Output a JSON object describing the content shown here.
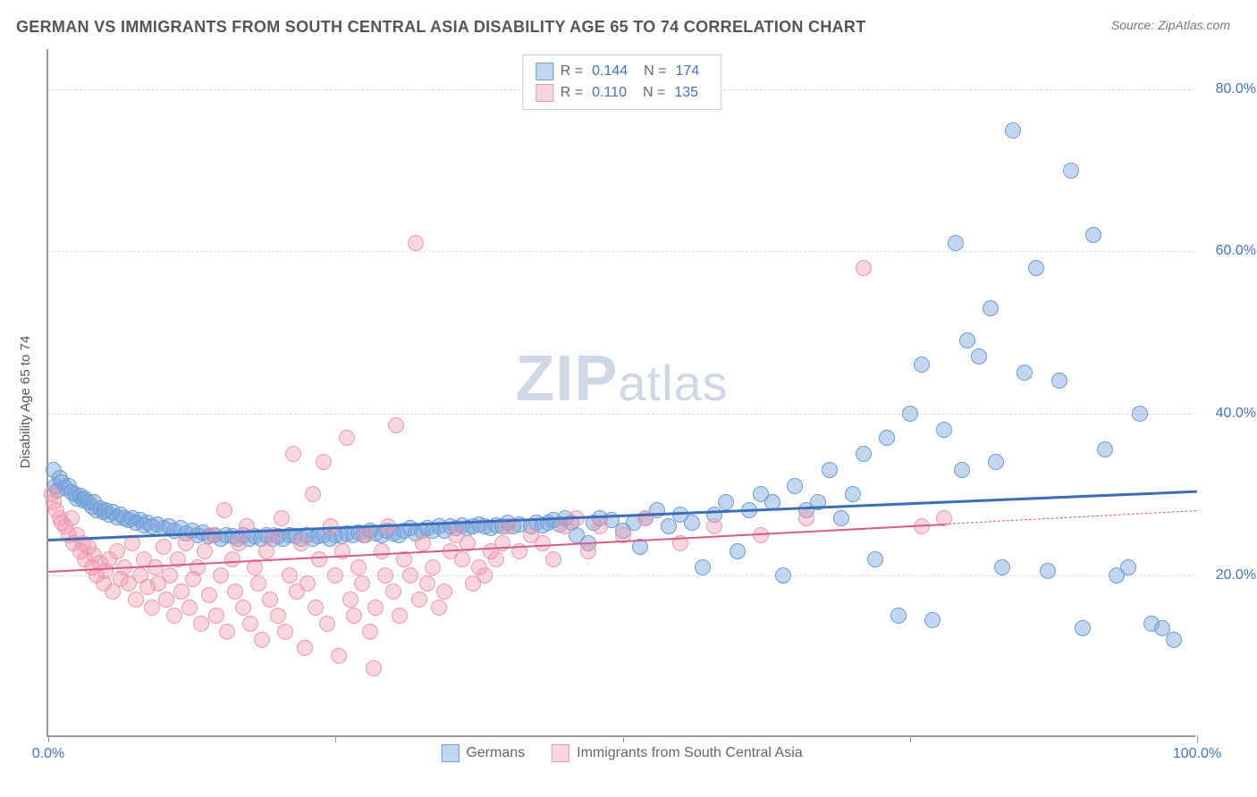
{
  "title": "GERMAN VS IMMIGRANTS FROM SOUTH CENTRAL ASIA DISABILITY AGE 65 TO 74 CORRELATION CHART",
  "source": "Source: ZipAtlas.com",
  "watermark_main": "ZIP",
  "watermark_sub": "atlas",
  "ylabel": "Disability Age 65 to 74",
  "chart": {
    "type": "scatter",
    "xlim": [
      0,
      100
    ],
    "ylim": [
      0,
      85
    ],
    "xtick_positions": [
      0,
      25,
      50,
      75,
      100
    ],
    "xtick_labels": {
      "0": "0.0%",
      "100": "100.0%"
    },
    "ytick_positions": [
      20,
      40,
      60,
      80
    ],
    "ytick_labels": [
      "20.0%",
      "40.0%",
      "60.0%",
      "80.0%"
    ],
    "gridline_y": [
      20,
      40,
      60,
      80
    ],
    "background_color": "#ffffff",
    "grid_color": "#dddddd",
    "axis_color": "#999999",
    "tick_label_color": "#4472c4",
    "series": [
      {
        "name": "Germans",
        "label": "Germans",
        "color_fill": "rgba(122,164,220,0.45)",
        "color_stroke": "#6b9dd6",
        "marker_size": 18,
        "R": "0.144",
        "N": "174",
        "trend": {
          "x1": 0,
          "y1": 24.5,
          "x2": 100,
          "y2": 30.5,
          "color": "#3b6db8",
          "width": 2.5,
          "dash_from_x": null
        },
        "points": [
          [
            0.5,
            33
          ],
          [
            0.6,
            31
          ],
          [
            0.8,
            30.5
          ],
          [
            1,
            32
          ],
          [
            1.2,
            31.5
          ],
          [
            1.5,
            30.8
          ],
          [
            1.8,
            31
          ],
          [
            2,
            30.2
          ],
          [
            2.3,
            30
          ],
          [
            2.5,
            29.5
          ],
          [
            2.8,
            29.8
          ],
          [
            3,
            29.2
          ],
          [
            3.2,
            29.5
          ],
          [
            3.5,
            29
          ],
          [
            3.8,
            28.5
          ],
          [
            4,
            29
          ],
          [
            4.2,
            28
          ],
          [
            4.5,
            28.3
          ],
          [
            4.8,
            27.8
          ],
          [
            5,
            28
          ],
          [
            5.3,
            27.5
          ],
          [
            5.6,
            27.8
          ],
          [
            6,
            27.2
          ],
          [
            6.3,
            27.5
          ],
          [
            6.6,
            27
          ],
          [
            7,
            26.8
          ],
          [
            7.3,
            27
          ],
          [
            7.6,
            26.5
          ],
          [
            8,
            26.8
          ],
          [
            8.3,
            26.2
          ],
          [
            8.6,
            26.5
          ],
          [
            9,
            26
          ],
          [
            9.5,
            26.3
          ],
          [
            10,
            25.8
          ],
          [
            10.5,
            26
          ],
          [
            11,
            25.5
          ],
          [
            11.5,
            25.8
          ],
          [
            12,
            25.2
          ],
          [
            12.5,
            25.5
          ],
          [
            13,
            25
          ],
          [
            13.5,
            25.3
          ],
          [
            14,
            24.8
          ],
          [
            14.5,
            25
          ],
          [
            15,
            24.5
          ],
          [
            15.5,
            25
          ],
          [
            16,
            24.8
          ],
          [
            16.5,
            24.5
          ],
          [
            17,
            25
          ],
          [
            17.5,
            24.5
          ],
          [
            18,
            24.8
          ],
          [
            18.5,
            24.5
          ],
          [
            19,
            25
          ],
          [
            19.5,
            24.5
          ],
          [
            20,
            24.8
          ],
          [
            20.5,
            24.5
          ],
          [
            21,
            25
          ],
          [
            21.5,
            24.8
          ],
          [
            22,
            24.5
          ],
          [
            22.5,
            25
          ],
          [
            23,
            24.5
          ],
          [
            23.5,
            24.8
          ],
          [
            24,
            25
          ],
          [
            24.5,
            24.5
          ],
          [
            25,
            25
          ],
          [
            25.5,
            24.8
          ],
          [
            26,
            25.2
          ],
          [
            26.5,
            25
          ],
          [
            27,
            25.3
          ],
          [
            27.5,
            25
          ],
          [
            28,
            25.5
          ],
          [
            28.5,
            25.2
          ],
          [
            29,
            25
          ],
          [
            29.5,
            25.5
          ],
          [
            30,
            25.2
          ],
          [
            30.5,
            25
          ],
          [
            31,
            25.5
          ],
          [
            31.5,
            25.8
          ],
          [
            32,
            25.2
          ],
          [
            32.5,
            25.5
          ],
          [
            33,
            25.8
          ],
          [
            33.5,
            25.5
          ],
          [
            34,
            26
          ],
          [
            34.5,
            25.5
          ],
          [
            35,
            26
          ],
          [
            35.5,
            25.8
          ],
          [
            36,
            26.2
          ],
          [
            36.5,
            25.8
          ],
          [
            37,
            26
          ],
          [
            37.5,
            26.3
          ],
          [
            38,
            26
          ],
          [
            38.5,
            25.8
          ],
          [
            39,
            26.2
          ],
          [
            39.5,
            26
          ],
          [
            40,
            26.5
          ],
          [
            40.5,
            26
          ],
          [
            41,
            26.3
          ],
          [
            42,
            26
          ],
          [
            42.5,
            26.5
          ],
          [
            43,
            26.2
          ],
          [
            43.5,
            26.5
          ],
          [
            44,
            26.8
          ],
          [
            44.5,
            26.3
          ],
          [
            45,
            27
          ],
          [
            45.5,
            26.5
          ],
          [
            46,
            25
          ],
          [
            47,
            24
          ],
          [
            47.5,
            26.5
          ],
          [
            48,
            27
          ],
          [
            49,
            26.8
          ],
          [
            50,
            25.5
          ],
          [
            51,
            26.5
          ],
          [
            51.5,
            23.5
          ],
          [
            52,
            27
          ],
          [
            53,
            28
          ],
          [
            54,
            26
          ],
          [
            55,
            27.5
          ],
          [
            56,
            26.5
          ],
          [
            57,
            21
          ],
          [
            58,
            27.5
          ],
          [
            59,
            29
          ],
          [
            60,
            23
          ],
          [
            61,
            28
          ],
          [
            62,
            30
          ],
          [
            63,
            29
          ],
          [
            64,
            20
          ],
          [
            65,
            31
          ],
          [
            66,
            28
          ],
          [
            67,
            29
          ],
          [
            68,
            33
          ],
          [
            69,
            27
          ],
          [
            70,
            30
          ],
          [
            71,
            35
          ],
          [
            72,
            22
          ],
          [
            73,
            37
          ],
          [
            74,
            15
          ],
          [
            75,
            40
          ],
          [
            76,
            46
          ],
          [
            77,
            14.5
          ],
          [
            78,
            38
          ],
          [
            79,
            61
          ],
          [
            79.5,
            33
          ],
          [
            80,
            49
          ],
          [
            81,
            47
          ],
          [
            82,
            53
          ],
          [
            82.5,
            34
          ],
          [
            83,
            21
          ],
          [
            84,
            75
          ],
          [
            85,
            45
          ],
          [
            86,
            58
          ],
          [
            87,
            20.5
          ],
          [
            88,
            44
          ],
          [
            89,
            70
          ],
          [
            90,
            13.5
          ],
          [
            91,
            62
          ],
          [
            92,
            35.5
          ],
          [
            93,
            20
          ],
          [
            94,
            21
          ],
          [
            95,
            40
          ],
          [
            96,
            14
          ],
          [
            97,
            13.5
          ],
          [
            98,
            12
          ]
        ]
      },
      {
        "name": "Immigrants from South Central Asia",
        "label": "Immigrants from South Central Asia",
        "color_fill": "rgba(240,150,170,0.4)",
        "color_stroke": "#e89ab0",
        "marker_size": 18,
        "R": "0.110",
        "N": "135",
        "trend": {
          "x1": 0,
          "y1": 20.5,
          "x2": 100,
          "y2": 28,
          "color": "#d65a8a",
          "width": 2,
          "dash_from_x": 78
        },
        "points": [
          [
            0.3,
            30
          ],
          [
            0.5,
            29
          ],
          [
            0.7,
            28
          ],
          [
            1,
            27
          ],
          [
            1.2,
            26.5
          ],
          [
            1.5,
            26
          ],
          [
            1.8,
            25
          ],
          [
            2,
            27
          ],
          [
            2.2,
            24
          ],
          [
            2.5,
            25
          ],
          [
            2.8,
            23
          ],
          [
            3,
            24
          ],
          [
            3.2,
            22
          ],
          [
            3.5,
            23.5
          ],
          [
            3.8,
            21
          ],
          [
            4,
            22.5
          ],
          [
            4.2,
            20
          ],
          [
            4.5,
            21.5
          ],
          [
            4.8,
            19
          ],
          [
            5,
            20.5
          ],
          [
            5.3,
            22
          ],
          [
            5.6,
            18
          ],
          [
            6,
            23
          ],
          [
            6.3,
            19.5
          ],
          [
            6.6,
            21
          ],
          [
            7,
            19
          ],
          [
            7.3,
            24
          ],
          [
            7.6,
            17
          ],
          [
            8,
            20
          ],
          [
            8.3,
            22
          ],
          [
            8.6,
            18.5
          ],
          [
            9,
            16
          ],
          [
            9.3,
            21
          ],
          [
            9.6,
            19
          ],
          [
            10,
            23.5
          ],
          [
            10.3,
            17
          ],
          [
            10.6,
            20
          ],
          [
            11,
            15
          ],
          [
            11.3,
            22
          ],
          [
            11.6,
            18
          ],
          [
            12,
            24
          ],
          [
            12.3,
            16
          ],
          [
            12.6,
            19.5
          ],
          [
            13,
            21
          ],
          [
            13.3,
            14
          ],
          [
            13.6,
            23
          ],
          [
            14,
            17.5
          ],
          [
            14.3,
            25
          ],
          [
            14.6,
            15
          ],
          [
            15,
            20
          ],
          [
            15.3,
            28
          ],
          [
            15.6,
            13
          ],
          [
            16,
            22
          ],
          [
            16.3,
            18
          ],
          [
            16.6,
            24
          ],
          [
            17,
            16
          ],
          [
            17.3,
            26
          ],
          [
            17.6,
            14
          ],
          [
            18,
            21
          ],
          [
            18.3,
            19
          ],
          [
            18.6,
            12
          ],
          [
            19,
            23
          ],
          [
            19.3,
            17
          ],
          [
            19.6,
            25
          ],
          [
            20,
            15
          ],
          [
            20.3,
            27
          ],
          [
            20.6,
            13
          ],
          [
            21,
            20
          ],
          [
            21.3,
            35
          ],
          [
            21.6,
            18
          ],
          [
            22,
            24
          ],
          [
            22.3,
            11
          ],
          [
            22.6,
            19
          ],
          [
            23,
            30
          ],
          [
            23.3,
            16
          ],
          [
            23.6,
            22
          ],
          [
            24,
            34
          ],
          [
            24.3,
            14
          ],
          [
            24.6,
            26
          ],
          [
            25,
            20
          ],
          [
            25.3,
            10
          ],
          [
            25.6,
            23
          ],
          [
            26,
            37
          ],
          [
            26.3,
            17
          ],
          [
            26.6,
            15
          ],
          [
            27,
            21
          ],
          [
            27.3,
            19
          ],
          [
            27.6,
            25
          ],
          [
            28,
            13
          ],
          [
            28.3,
            8.5
          ],
          [
            28.5,
            16
          ],
          [
            29,
            23
          ],
          [
            29.3,
            20
          ],
          [
            29.6,
            26
          ],
          [
            30,
            18
          ],
          [
            30.3,
            38.5
          ],
          [
            30.6,
            15
          ],
          [
            31,
            22
          ],
          [
            31.5,
            20
          ],
          [
            32,
            61
          ],
          [
            32.3,
            17
          ],
          [
            32.6,
            24
          ],
          [
            33,
            19
          ],
          [
            33.5,
            21
          ],
          [
            34,
            16
          ],
          [
            34.5,
            18
          ],
          [
            35,
            23
          ],
          [
            35.5,
            25
          ],
          [
            36,
            22
          ],
          [
            36.5,
            24
          ],
          [
            37,
            19
          ],
          [
            37.5,
            21
          ],
          [
            38,
            20
          ],
          [
            38.5,
            23
          ],
          [
            39,
            22
          ],
          [
            39.5,
            24
          ],
          [
            40,
            26
          ],
          [
            41,
            23
          ],
          [
            42,
            25
          ],
          [
            43,
            24
          ],
          [
            44,
            22
          ],
          [
            45,
            26
          ],
          [
            46,
            27
          ],
          [
            47,
            23
          ],
          [
            48,
            26
          ],
          [
            50,
            25
          ],
          [
            52,
            27
          ],
          [
            55,
            24
          ],
          [
            58,
            26
          ],
          [
            62,
            25
          ],
          [
            66,
            27
          ],
          [
            71,
            58
          ],
          [
            76,
            26
          ],
          [
            78,
            27
          ]
        ]
      }
    ]
  },
  "legend_top": {
    "rows": [
      {
        "swatch_fill": "rgba(122,164,220,0.45)",
        "swatch_border": "#6b9dd6",
        "R_label": "R =",
        "R_val": "0.144",
        "N_label": "N =",
        "N_val": "174"
      },
      {
        "swatch_fill": "rgba(240,150,170,0.4)",
        "swatch_border": "#e89ab0",
        "R_label": "R =",
        "R_val": "0.110",
        "N_label": "N =",
        "N_val": "135"
      }
    ]
  },
  "legend_bottom": {
    "items": [
      {
        "swatch_fill": "rgba(122,164,220,0.45)",
        "swatch_border": "#6b9dd6",
        "label": "Germans"
      },
      {
        "swatch_fill": "rgba(240,150,170,0.4)",
        "swatch_border": "#e89ab0",
        "label": "Immigrants from South Central Asia"
      }
    ]
  }
}
